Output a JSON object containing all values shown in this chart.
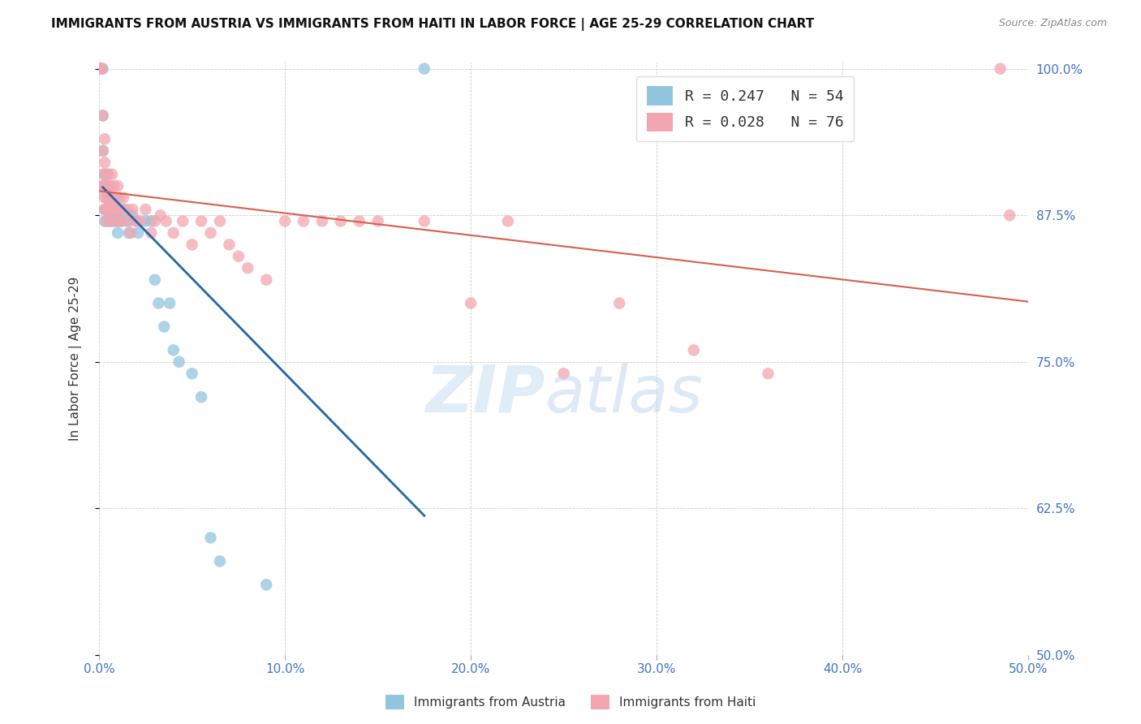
{
  "title": "IMMIGRANTS FROM AUSTRIA VS IMMIGRANTS FROM HAITI IN LABOR FORCE | AGE 25-29 CORRELATION CHART",
  "source": "Source: ZipAtlas.com",
  "ylabel": "In Labor Force | Age 25-29",
  "xlim": [
    0.0,
    0.5
  ],
  "ylim": [
    0.5,
    1.005
  ],
  "xtick_labels": [
    "0.0%",
    "10.0%",
    "20.0%",
    "30.0%",
    "40.0%",
    "50.0%"
  ],
  "xtick_vals": [
    0.0,
    0.1,
    0.2,
    0.3,
    0.4,
    0.5
  ],
  "ytick_labels": [
    "100.0%",
    "87.5%",
    "75.0%",
    "62.5%",
    "50.0%"
  ],
  "ytick_vals": [
    1.0,
    0.875,
    0.75,
    0.625,
    0.5
  ],
  "austria_color": "#92c5de",
  "haiti_color": "#f4a6b0",
  "austria_trend_color": "#2166ac",
  "haiti_trend_color": "#d6604d",
  "background_color": "#ffffff",
  "grid_color": "#cccccc",
  "axis_color": "#4472c4",
  "title_color": "#111111",
  "legend_austria_label": "R = 0.247   N = 54",
  "legend_haiti_label": "R = 0.028   N = 76",
  "bottom_legend_austria": "Immigrants from Austria",
  "bottom_legend_haiti": "Immigrants from Haiti",
  "austria_x": [
    0.001,
    0.001,
    0.001,
    0.001,
    0.001,
    0.001,
    0.001,
    0.001,
    0.002,
    0.002,
    0.002,
    0.002,
    0.003,
    0.003,
    0.003,
    0.003,
    0.003,
    0.004,
    0.004,
    0.004,
    0.005,
    0.005,
    0.005,
    0.006,
    0.006,
    0.007,
    0.007,
    0.008,
    0.008,
    0.009,
    0.01,
    0.01,
    0.011,
    0.012,
    0.013,
    0.015,
    0.016,
    0.018,
    0.02,
    0.021,
    0.025,
    0.028,
    0.03,
    0.032,
    0.035,
    0.038,
    0.04,
    0.043,
    0.05,
    0.055,
    0.06,
    0.065,
    0.09,
    0.175
  ],
  "austria_y": [
    1.0,
    1.0,
    1.0,
    1.0,
    1.0,
    1.0,
    1.0,
    1.0,
    1.0,
    0.96,
    0.93,
    0.9,
    0.91,
    0.9,
    0.895,
    0.88,
    0.87,
    0.91,
    0.9,
    0.88,
    0.9,
    0.88,
    0.87,
    0.885,
    0.875,
    0.88,
    0.87,
    0.88,
    0.87,
    0.875,
    0.87,
    0.86,
    0.875,
    0.87,
    0.88,
    0.87,
    0.86,
    0.875,
    0.87,
    0.86,
    0.87,
    0.87,
    0.82,
    0.8,
    0.78,
    0.8,
    0.76,
    0.75,
    0.74,
    0.72,
    0.6,
    0.58,
    0.56,
    1.0
  ],
  "haiti_x": [
    0.001,
    0.001,
    0.001,
    0.001,
    0.001,
    0.001,
    0.002,
    0.002,
    0.002,
    0.002,
    0.003,
    0.003,
    0.003,
    0.003,
    0.003,
    0.004,
    0.004,
    0.004,
    0.004,
    0.005,
    0.005,
    0.005,
    0.006,
    0.006,
    0.006,
    0.007,
    0.007,
    0.007,
    0.008,
    0.008,
    0.008,
    0.009,
    0.009,
    0.01,
    0.01,
    0.01,
    0.011,
    0.012,
    0.012,
    0.013,
    0.015,
    0.016,
    0.017,
    0.018,
    0.02,
    0.022,
    0.025,
    0.028,
    0.03,
    0.033,
    0.036,
    0.04,
    0.045,
    0.05,
    0.055,
    0.06,
    0.065,
    0.07,
    0.075,
    0.08,
    0.09,
    0.1,
    0.11,
    0.12,
    0.13,
    0.14,
    0.15,
    0.175,
    0.2,
    0.22,
    0.25,
    0.28,
    0.32,
    0.36,
    0.485,
    0.49
  ],
  "haiti_y": [
    1.0,
    1.0,
    1.0,
    1.0,
    1.0,
    1.0,
    0.96,
    0.93,
    0.91,
    0.9,
    0.94,
    0.92,
    0.9,
    0.89,
    0.88,
    0.9,
    0.89,
    0.88,
    0.87,
    0.91,
    0.9,
    0.88,
    0.9,
    0.89,
    0.87,
    0.91,
    0.89,
    0.88,
    0.9,
    0.89,
    0.88,
    0.89,
    0.88,
    0.9,
    0.88,
    0.87,
    0.89,
    0.88,
    0.87,
    0.89,
    0.88,
    0.87,
    0.86,
    0.88,
    0.87,
    0.87,
    0.88,
    0.86,
    0.87,
    0.875,
    0.87,
    0.86,
    0.87,
    0.85,
    0.87,
    0.86,
    0.87,
    0.85,
    0.84,
    0.83,
    0.82,
    0.87,
    0.87,
    0.87,
    0.87,
    0.87,
    0.87,
    0.87,
    0.8,
    0.87,
    0.74,
    0.8,
    0.76,
    0.74,
    1.0,
    0.875
  ]
}
